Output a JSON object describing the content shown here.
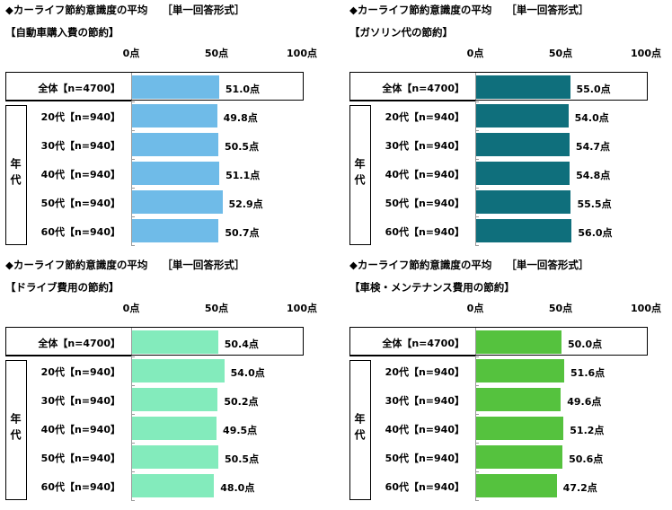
{
  "panels": [
    {
      "title": "◆カーライフ節約意識度の平均",
      "tag": "［単一回答形式］",
      "subtitle": "【自動車購入費の節約】",
      "color": "#6fbbe8",
      "labels": [
        "全体【n=4700】",
        "20代【n=940】",
        "30代【n=940】",
        "40代【n=940】",
        "50代【n=940】",
        "60代【n=940】"
      ],
      "values": [
        51.0,
        49.8,
        50.5,
        51.1,
        52.9,
        50.7
      ],
      "value_labels": [
        "51.0点",
        "49.8点",
        "50.5点",
        "51.1点",
        "52.9点",
        "50.7点"
      ]
    },
    {
      "title": "◆カーライフ節約意識度の平均",
      "tag": "［単一回答形式］",
      "subtitle": "【ガソリン代の節約】",
      "color": "#0f6f7c",
      "labels": [
        "全体【n=4700】",
        "20代【n=940】",
        "30代【n=940】",
        "40代【n=940】",
        "50代【n=940】",
        "60代【n=940】"
      ],
      "values": [
        55.0,
        54.0,
        54.7,
        54.8,
        55.5,
        56.0
      ],
      "value_labels": [
        "55.0点",
        "54.0点",
        "54.7点",
        "54.8点",
        "55.5点",
        "56.0点"
      ]
    },
    {
      "title": "◆カーライフ節約意識度の平均",
      "tag": "［単一回答形式］",
      "subtitle": "【ドライブ費用の節約】",
      "color": "#83ebbc",
      "labels": [
        "全体【n=4700】",
        "20代【n=940】",
        "30代【n=940】",
        "40代【n=940】",
        "50代【n=940】",
        "60代【n=940】"
      ],
      "values": [
        50.4,
        54.0,
        50.2,
        49.5,
        50.5,
        48.0
      ],
      "value_labels": [
        "50.4点",
        "54.0点",
        "50.2点",
        "49.5点",
        "50.5点",
        "48.0点"
      ]
    },
    {
      "title": "◆カーライフ節約意識度の平均",
      "tag": "［単一回答形式］",
      "subtitle": "【車検・メンテナンス費用の節約】",
      "color": "#55c23e",
      "labels": [
        "全体【n=4700】",
        "20代【n=940】",
        "30代【n=940】",
        "40代【n=940】",
        "50代【n=940】",
        "60代【n=940】"
      ],
      "values": [
        50.0,
        51.6,
        49.6,
        51.2,
        50.6,
        47.2
      ],
      "value_labels": [
        "50.0点",
        "51.6点",
        "49.6点",
        "51.2点",
        "50.6点",
        "47.2点"
      ]
    }
  ],
  "axis_ticks": [
    "0点",
    "50点",
    "100点"
  ],
  "group_label": "年代",
  "chart_data": [
    {
      "type": "bar",
      "title": "◆カーライフ節約意識度の平均",
      "subtitle": "【自動車購入費の節約】",
      "categories": [
        "全体【n=4700】",
        "20代【n=940】",
        "30代【n=940】",
        "40代【n=940】",
        "50代【n=940】",
        "60代【n=940】"
      ],
      "values": [
        51.0,
        49.8,
        50.5,
        51.1,
        52.9,
        50.7
      ],
      "xlim": [
        0,
        100
      ],
      "orientation": "horizontal"
    },
    {
      "type": "bar",
      "title": "◆カーライフ節約意識度の平均",
      "subtitle": "【ガソリン代の節約】",
      "categories": [
        "全体【n=4700】",
        "20代【n=940】",
        "30代【n=940】",
        "40代【n=940】",
        "50代【n=940】",
        "60代【n=940】"
      ],
      "values": [
        55.0,
        54.0,
        54.7,
        54.8,
        55.5,
        56.0
      ],
      "xlim": [
        0,
        100
      ],
      "orientation": "horizontal"
    },
    {
      "type": "bar",
      "title": "◆カーライフ節約意識度の平均",
      "subtitle": "【ドライブ費用の節約】",
      "categories": [
        "全体【n=4700】",
        "20代【n=940】",
        "30代【n=940】",
        "40代【n=940】",
        "50代【n=940】",
        "60代【n=940】"
      ],
      "values": [
        50.4,
        54.0,
        50.2,
        49.5,
        50.5,
        48.0
      ],
      "xlim": [
        0,
        100
      ],
      "orientation": "horizontal"
    },
    {
      "type": "bar",
      "title": "◆カーライフ節約意識度の平均",
      "subtitle": "【車検・メンテナンス費用の節約】",
      "categories": [
        "全体【n=4700】",
        "20代【n=940】",
        "30代【n=940】",
        "40代【n=940】",
        "50代【n=940】",
        "60代【n=940】"
      ],
      "values": [
        50.0,
        51.6,
        49.6,
        51.2,
        50.6,
        47.2
      ],
      "xlim": [
        0,
        100
      ],
      "orientation": "horizontal"
    }
  ]
}
